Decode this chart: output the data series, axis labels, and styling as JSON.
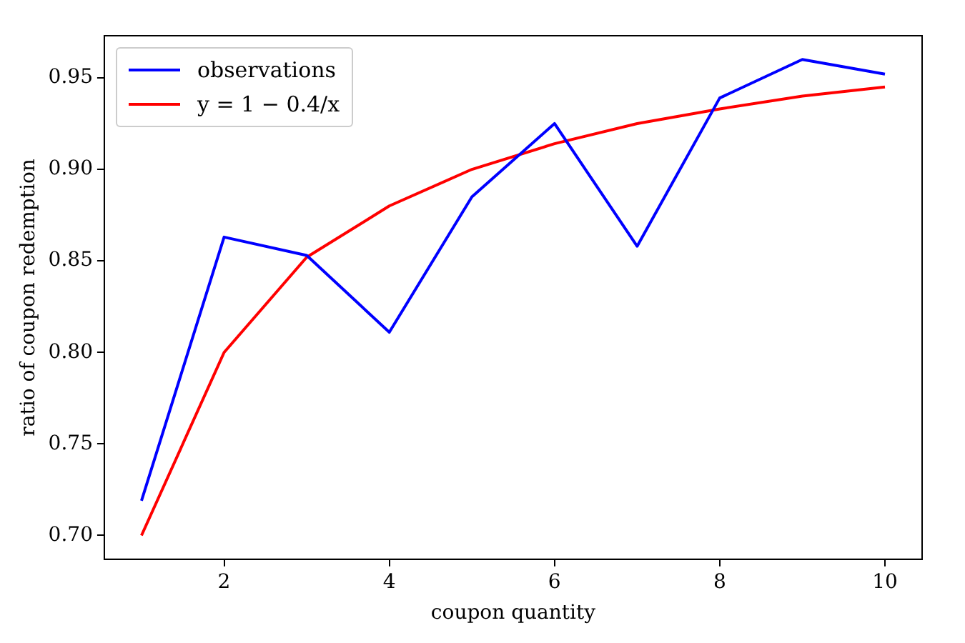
{
  "chart_data": {
    "type": "line",
    "xlabel": "coupon quantity",
    "ylabel": "ratio of coupon redemption",
    "x": [
      1,
      2,
      3,
      4,
      5,
      6,
      7,
      8,
      9,
      10
    ],
    "series": [
      {
        "name": "observations",
        "color": "#0000ff",
        "values": [
          0.719,
          0.863,
          0.853,
          0.811,
          0.885,
          0.925,
          0.858,
          0.939,
          0.96,
          0.952
        ]
      },
      {
        "name": "y = 1 − 0.4/x",
        "color": "#ff0000",
        "values": [
          0.7,
          0.8,
          0.852,
          0.88,
          0.9,
          0.914,
          0.925,
          0.933,
          0.94,
          0.945
        ]
      }
    ],
    "xlim": [
      0.55,
      10.45
    ],
    "ylim": [
      0.687,
      0.973
    ],
    "xticks": [
      2,
      4,
      6,
      8,
      10
    ],
    "yticks": [
      {
        "value": 0.7,
        "label": "0.70"
      },
      0.75,
      {
        "value": 0.8,
        "label": "0.80"
      },
      0.85,
      {
        "value": 0.9,
        "label": "0.90"
      },
      0.95
    ],
    "legend": "top left",
    "marker": "none",
    "line_style": "solid"
  }
}
